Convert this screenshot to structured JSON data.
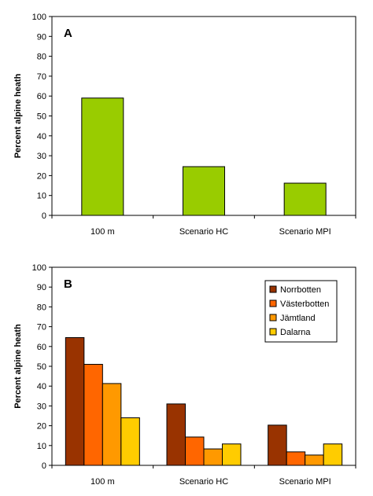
{
  "chart_data": [
    {
      "type": "bar",
      "panel_label": "A",
      "categories": [
        "100 m",
        "Scenario HC",
        "Scenario MPI"
      ],
      "values": [
        59,
        24.5,
        16.2
      ],
      "ylabel": "Percent alpine heath",
      "ylim": [
        0,
        100
      ],
      "yticks": [
        0,
        10,
        20,
        30,
        40,
        50,
        60,
        70,
        80,
        90,
        100
      ],
      "grid": false,
      "bar_color": "#99cc00"
    },
    {
      "type": "bar",
      "panel_label": "B",
      "categories": [
        "100 m",
        "Scenario HC",
        "Scenario MPI"
      ],
      "series": [
        {
          "name": "Norrbotten",
          "color": "#993300",
          "values": [
            64.5,
            31,
            20.3
          ]
        },
        {
          "name": "Västerbotten",
          "color": "#ff6600",
          "values": [
            51,
            14.3,
            6.8
          ]
        },
        {
          "name": "Jämtland",
          "color": "#ff9900",
          "values": [
            41.3,
            8.3,
            5.2
          ]
        },
        {
          "name": "Dalarna",
          "color": "#ffcc00",
          "values": [
            24,
            10.8,
            10.8
          ]
        }
      ],
      "ylabel": "Percent alpine heath",
      "ylim": [
        0,
        100
      ],
      "yticks": [
        0,
        10,
        20,
        30,
        40,
        50,
        60,
        70,
        80,
        90,
        100
      ],
      "grid": false,
      "legend_position": "top-right"
    }
  ]
}
